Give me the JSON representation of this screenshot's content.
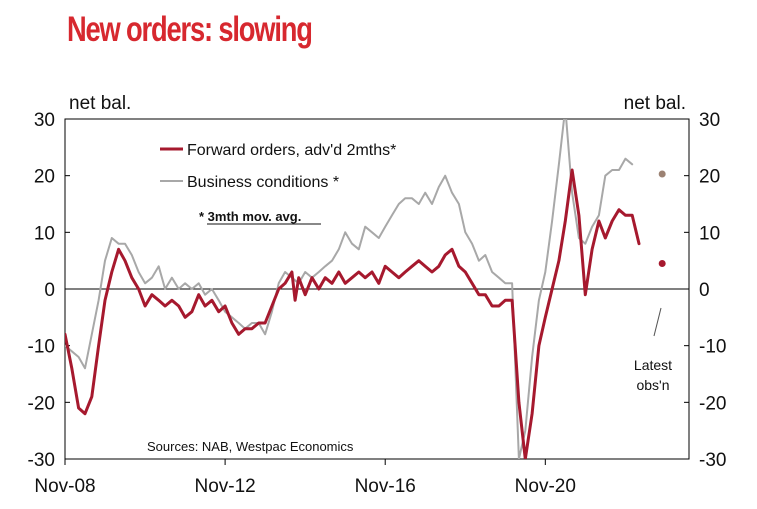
{
  "title": "New orders: slowing",
  "chart_data": {
    "type": "line",
    "ylabel_left": "net bal.",
    "ylabel_right": "net bal.",
    "ylim": [
      -30,
      30
    ],
    "yticks": [
      30,
      20,
      10,
      0,
      -10,
      -20,
      -30
    ],
    "xlim": [
      2008.83,
      2024.42
    ],
    "xticks": [
      {
        "label": "Nov-08",
        "x": 2008.83
      },
      {
        "label": "Nov-12",
        "x": 2012.83
      },
      {
        "label": "Nov-16",
        "x": 2016.83
      },
      {
        "label": "Nov-20",
        "x": 2020.83
      }
    ],
    "series": [
      {
        "name": "Forward orders, adv'd 2mths*",
        "color": "#a6192e",
        "points": [
          [
            2008.83,
            -8
          ],
          [
            2009.0,
            -14
          ],
          [
            2009.17,
            -21
          ],
          [
            2009.33,
            -22
          ],
          [
            2009.5,
            -19
          ],
          [
            2009.67,
            -10
          ],
          [
            2009.83,
            -2
          ],
          [
            2010.0,
            3
          ],
          [
            2010.17,
            7
          ],
          [
            2010.33,
            5
          ],
          [
            2010.5,
            2
          ],
          [
            2010.67,
            0
          ],
          [
            2010.83,
            -3
          ],
          [
            2011.0,
            -1
          ],
          [
            2011.17,
            -2
          ],
          [
            2011.33,
            -3
          ],
          [
            2011.5,
            -2
          ],
          [
            2011.67,
            -3
          ],
          [
            2011.83,
            -5
          ],
          [
            2012.0,
            -4
          ],
          [
            2012.17,
            -1
          ],
          [
            2012.33,
            -3
          ],
          [
            2012.5,
            -2
          ],
          [
            2012.67,
            -4
          ],
          [
            2012.83,
            -3
          ],
          [
            2013.0,
            -6
          ],
          [
            2013.17,
            -8
          ],
          [
            2013.33,
            -7
          ],
          [
            2013.5,
            -7
          ],
          [
            2013.67,
            -6
          ],
          [
            2013.83,
            -6
          ],
          [
            2014.0,
            -3
          ],
          [
            2014.17,
            0
          ],
          [
            2014.33,
            1
          ],
          [
            2014.5,
            3
          ],
          [
            2014.58,
            -2
          ],
          [
            2014.67,
            2
          ],
          [
            2014.83,
            -1
          ],
          [
            2015.0,
            2
          ],
          [
            2015.17,
            0
          ],
          [
            2015.33,
            2
          ],
          [
            2015.5,
            1
          ],
          [
            2015.67,
            3
          ],
          [
            2015.83,
            1
          ],
          [
            2016.0,
            2
          ],
          [
            2016.17,
            3
          ],
          [
            2016.33,
            2
          ],
          [
            2016.5,
            3
          ],
          [
            2016.67,
            1
          ],
          [
            2016.83,
            4
          ],
          [
            2017.0,
            3
          ],
          [
            2017.17,
            2
          ],
          [
            2017.33,
            3
          ],
          [
            2017.5,
            4
          ],
          [
            2017.67,
            5
          ],
          [
            2017.83,
            4
          ],
          [
            2018.0,
            3
          ],
          [
            2018.17,
            4
          ],
          [
            2018.33,
            6
          ],
          [
            2018.5,
            7
          ],
          [
            2018.67,
            4
          ],
          [
            2018.83,
            3
          ],
          [
            2019.0,
            1
          ],
          [
            2019.17,
            -1
          ],
          [
            2019.33,
            -1
          ],
          [
            2019.5,
            -3
          ],
          [
            2019.67,
            -3
          ],
          [
            2019.83,
            -2
          ],
          [
            2020.0,
            -2
          ],
          [
            2020.17,
            -20
          ],
          [
            2020.33,
            -30
          ],
          [
            2020.5,
            -22
          ],
          [
            2020.67,
            -10
          ],
          [
            2020.83,
            -5
          ],
          [
            2021.0,
            0
          ],
          [
            2021.17,
            5
          ],
          [
            2021.33,
            12
          ],
          [
            2021.5,
            21
          ],
          [
            2021.67,
            13
          ],
          [
            2021.83,
            -1
          ],
          [
            2022.0,
            7
          ],
          [
            2022.17,
            12
          ],
          [
            2022.33,
            9
          ],
          [
            2022.5,
            12
          ],
          [
            2022.67,
            14
          ],
          [
            2022.83,
            13
          ],
          [
            2023.0,
            13
          ],
          [
            2023.17,
            8
          ]
        ]
      },
      {
        "name": "Business conditions *",
        "color": "#a8a8a8",
        "points": [
          [
            2008.83,
            -10
          ],
          [
            2009.0,
            -11
          ],
          [
            2009.17,
            -12
          ],
          [
            2009.33,
            -14
          ],
          [
            2009.5,
            -8
          ],
          [
            2009.67,
            -2
          ],
          [
            2009.83,
            5
          ],
          [
            2010.0,
            9
          ],
          [
            2010.17,
            8
          ],
          [
            2010.33,
            8
          ],
          [
            2010.5,
            6
          ],
          [
            2010.67,
            3
          ],
          [
            2010.83,
            1
          ],
          [
            2011.0,
            2
          ],
          [
            2011.17,
            4
          ],
          [
            2011.33,
            0
          ],
          [
            2011.5,
            2
          ],
          [
            2011.67,
            0
          ],
          [
            2011.83,
            1
          ],
          [
            2012.0,
            0
          ],
          [
            2012.17,
            1
          ],
          [
            2012.33,
            -1
          ],
          [
            2012.5,
            0
          ],
          [
            2012.67,
            -2
          ],
          [
            2012.83,
            -4
          ],
          [
            2013.0,
            -5
          ],
          [
            2013.17,
            -6
          ],
          [
            2013.33,
            -7
          ],
          [
            2013.5,
            -6
          ],
          [
            2013.67,
            -6
          ],
          [
            2013.83,
            -8
          ],
          [
            2014.0,
            -4
          ],
          [
            2014.17,
            1
          ],
          [
            2014.33,
            3
          ],
          [
            2014.5,
            2
          ],
          [
            2014.67,
            1
          ],
          [
            2014.83,
            3
          ],
          [
            2015.0,
            2
          ],
          [
            2015.17,
            3
          ],
          [
            2015.33,
            4
          ],
          [
            2015.5,
            5
          ],
          [
            2015.67,
            7
          ],
          [
            2015.83,
            10
          ],
          [
            2016.0,
            8
          ],
          [
            2016.17,
            7
          ],
          [
            2016.33,
            11
          ],
          [
            2016.5,
            10
          ],
          [
            2016.67,
            9
          ],
          [
            2016.83,
            11
          ],
          [
            2017.0,
            13
          ],
          [
            2017.17,
            15
          ],
          [
            2017.33,
            16
          ],
          [
            2017.5,
            16
          ],
          [
            2017.67,
            15
          ],
          [
            2017.83,
            17
          ],
          [
            2018.0,
            15
          ],
          [
            2018.17,
            18
          ],
          [
            2018.33,
            20
          ],
          [
            2018.5,
            17
          ],
          [
            2018.67,
            15
          ],
          [
            2018.83,
            10
          ],
          [
            2019.0,
            8
          ],
          [
            2019.17,
            5
          ],
          [
            2019.33,
            6
          ],
          [
            2019.5,
            3
          ],
          [
            2019.67,
            2
          ],
          [
            2019.83,
            1
          ],
          [
            2020.0,
            1
          ],
          [
            2020.17,
            -30
          ],
          [
            2020.33,
            -25
          ],
          [
            2020.5,
            -12
          ],
          [
            2020.67,
            -2
          ],
          [
            2020.83,
            3
          ],
          [
            2021.0,
            12
          ],
          [
            2021.17,
            22
          ],
          [
            2021.33,
            32
          ],
          [
            2021.5,
            17
          ],
          [
            2021.67,
            9
          ],
          [
            2021.83,
            8
          ],
          [
            2022.0,
            11
          ],
          [
            2022.17,
            13
          ],
          [
            2022.33,
            20
          ],
          [
            2022.5,
            21
          ],
          [
            2022.67,
            21
          ],
          [
            2022.83,
            23
          ],
          [
            2023.0,
            22
          ]
        ]
      }
    ],
    "latest_obs": [
      {
        "series": "Business conditions *",
        "x": 2023.75,
        "y": 20.3,
        "color": "#9c8273"
      },
      {
        "series": "Forward orders, adv'd 2mths*",
        "x": 2023.75,
        "y": 4.5,
        "color": "#a6192e"
      }
    ],
    "legend_position": "top-center",
    "annotations": {
      "footnote": "* 3mth mov. avg.",
      "latest": [
        "Latest",
        "obs'n"
      ],
      "source": "Sources: NAB, Westpac Economics"
    },
    "grid": false
  }
}
